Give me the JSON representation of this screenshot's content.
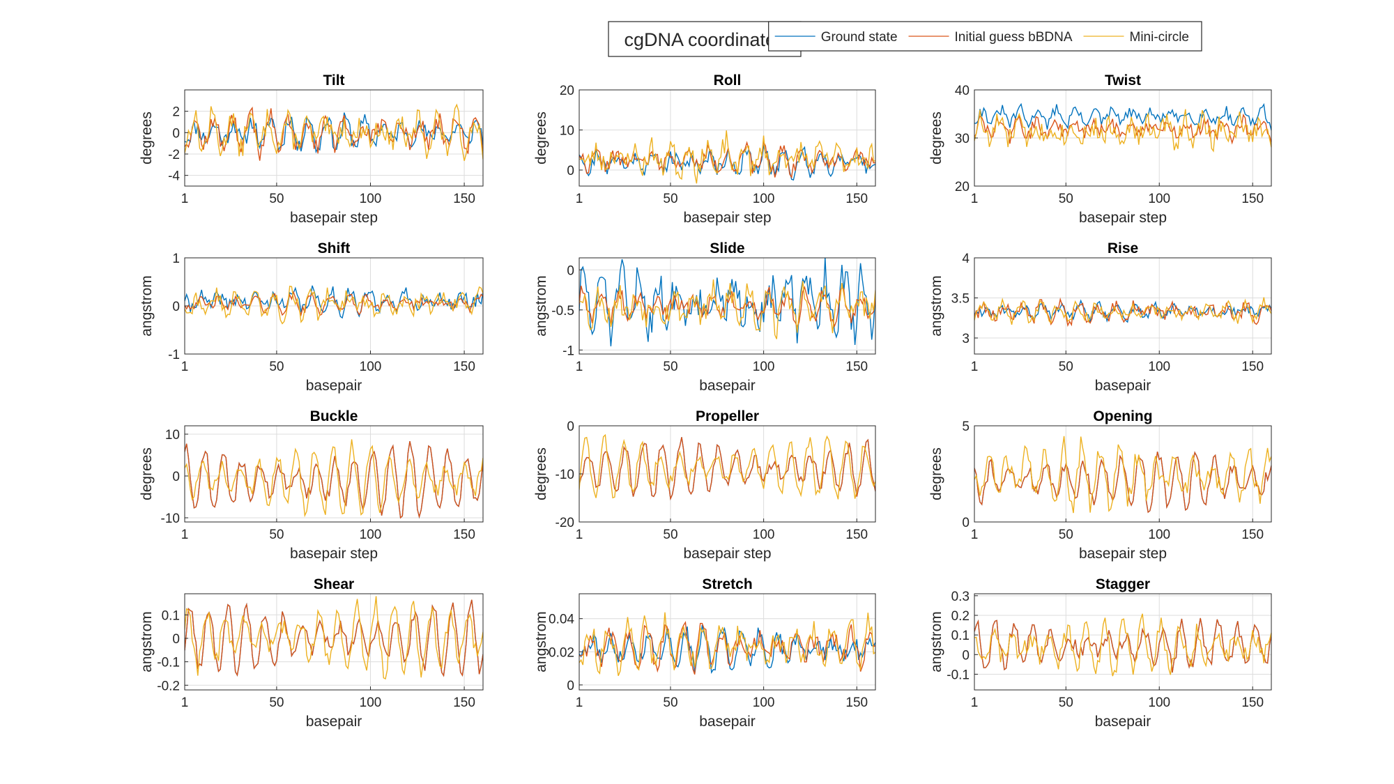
{
  "figure": {
    "title": "cgDNA coordinates",
    "legend": {
      "placement": "top-right",
      "entries": [
        {
          "label": "Ground state",
          "color": "#0072BD"
        },
        {
          "label": "Initial guess bBDNA",
          "color": "#D95319"
        },
        {
          "label": "Mini-circle",
          "color": "#EDB120"
        }
      ]
    }
  },
  "chart_data": [
    {
      "type": "line",
      "title": "Tilt",
      "xlabel": "basepair step",
      "ylabel": "degrees",
      "xlim": [
        1,
        160
      ],
      "ylim": [
        -5,
        4
      ],
      "xticks": [
        1,
        50,
        100,
        150
      ],
      "yticks": [
        -4,
        -2,
        0,
        2
      ],
      "grid": true,
      "series": [
        {
          "name": "Ground state",
          "base": 0,
          "amp": 1.3,
          "noise": 0.8,
          "seed": 11
        },
        {
          "name": "Initial guess bBDNA",
          "base": 0,
          "amp": 1.5,
          "noise": 0.9,
          "seed": 12
        },
        {
          "name": "Mini-circle",
          "base": 0,
          "amp": 1.4,
          "noise": 1.1,
          "seed": 13
        }
      ]
    },
    {
      "type": "line",
      "title": "Roll",
      "xlabel": "basepair step",
      "ylabel": "degrees",
      "xlim": [
        1,
        160
      ],
      "ylim": [
        -4,
        20
      ],
      "xticks": [
        1,
        50,
        100,
        150
      ],
      "yticks": [
        0,
        10,
        20
      ],
      "grid": true,
      "series": [
        {
          "name": "Ground state",
          "base": 2,
          "amp": 2.5,
          "noise": 2,
          "seed": 21
        },
        {
          "name": "Initial guess bBDNA",
          "base": 2.5,
          "amp": 2.5,
          "noise": 1.8,
          "seed": 22
        },
        {
          "name": "Mini-circle",
          "base": 3,
          "amp": 3.5,
          "noise": 3,
          "seed": 23
        }
      ]
    },
    {
      "type": "line",
      "title": "Twist",
      "xlabel": "basepair step",
      "ylabel": "degrees",
      "xlim": [
        1,
        160
      ],
      "ylim": [
        20,
        40
      ],
      "xticks": [
        1,
        50,
        100,
        150
      ],
      "yticks": [
        20,
        30,
        40
      ],
      "grid": true,
      "series": [
        {
          "name": "Ground state",
          "base": 34.5,
          "amp": 1.5,
          "noise": 1.2,
          "seed": 31
        },
        {
          "name": "Initial guess bBDNA",
          "base": 32,
          "amp": 1.5,
          "noise": 1.5,
          "seed": 32
        },
        {
          "name": "Mini-circle",
          "base": 31.5,
          "amp": 2,
          "noise": 2.5,
          "seed": 33
        }
      ]
    },
    {
      "type": "line",
      "title": "Shift",
      "xlabel": "basepair",
      "ylabel": "angstrom",
      "xlim": [
        1,
        160
      ],
      "ylim": [
        -1,
        1
      ],
      "xticks": [
        1,
        50,
        100,
        150
      ],
      "yticks": [
        -1,
        0,
        1
      ],
      "grid": true,
      "series": [
        {
          "name": "Ground state",
          "base": 0.1,
          "amp": 0.2,
          "noise": 0.15,
          "seed": 41
        },
        {
          "name": "Initial guess bBDNA",
          "base": 0.05,
          "amp": 0.15,
          "noise": 0.1,
          "seed": 42
        },
        {
          "name": "Mini-circle",
          "base": 0.05,
          "amp": 0.22,
          "noise": 0.18,
          "seed": 43
        }
      ]
    },
    {
      "type": "line",
      "title": "Slide",
      "xlabel": "basepair",
      "ylabel": "angstrom",
      "xlim": [
        1,
        160
      ],
      "ylim": [
        -1.05,
        0.15
      ],
      "xticks": [
        1,
        50,
        100,
        150
      ],
      "yticks": [
        -1,
        -0.5,
        0
      ],
      "grid": true,
      "series": [
        {
          "name": "Ground state",
          "base": -0.4,
          "amp": 0.3,
          "noise": 0.25,
          "seed": 51
        },
        {
          "name": "Initial guess bBDNA",
          "base": -0.45,
          "amp": 0.15,
          "noise": 0.1,
          "seed": 52
        },
        {
          "name": "Mini-circle",
          "base": -0.45,
          "amp": 0.22,
          "noise": 0.18,
          "seed": 53
        }
      ]
    },
    {
      "type": "line",
      "title": "Rise",
      "xlabel": "basepair",
      "ylabel": "angstrom",
      "xlim": [
        1,
        160
      ],
      "ylim": [
        2.8,
        4
      ],
      "xticks": [
        1,
        50,
        100,
        150
      ],
      "yticks": [
        3,
        3.5,
        4
      ],
      "grid": true,
      "series": [
        {
          "name": "Ground state",
          "base": 3.33,
          "amp": 0.08,
          "noise": 0.06,
          "seed": 61
        },
        {
          "name": "Initial guess bBDNA",
          "base": 3.33,
          "amp": 0.1,
          "noise": 0.08,
          "seed": 62
        },
        {
          "name": "Mini-circle",
          "base": 3.33,
          "amp": 0.09,
          "noise": 0.07,
          "seed": 63
        }
      ]
    },
    {
      "type": "line",
      "title": "Buckle",
      "xlabel": "basepair step",
      "ylabel": "degrees",
      "xlim": [
        1,
        160
      ],
      "ylim": [
        -11,
        12
      ],
      "xticks": [
        1,
        50,
        100,
        150
      ],
      "yticks": [
        -10,
        0,
        10
      ],
      "grid": true,
      "series": [
        {
          "name": "Ground state",
          "base": -1,
          "amp": 7,
          "noise": 1.5,
          "seed": 71
        },
        {
          "name": "Initial guess bBDNA",
          "base": -1,
          "amp": 7,
          "noise": 1.5,
          "seed": 71
        },
        {
          "name": "Mini-circle",
          "base": -0.8,
          "amp": 7,
          "noise": 1.8,
          "seed": 73
        }
      ]
    },
    {
      "type": "line",
      "title": "Propeller",
      "xlabel": "basepair step",
      "ylabel": "degrees",
      "xlim": [
        1,
        160
      ],
      "ylim": [
        -20,
        0
      ],
      "xticks": [
        1,
        50,
        100,
        150
      ],
      "yticks": [
        -20,
        -10,
        0
      ],
      "grid": true,
      "series": [
        {
          "name": "Ground state",
          "base": -9,
          "amp": 5,
          "noise": 1.2,
          "seed": 81
        },
        {
          "name": "Initial guess bBDNA",
          "base": -9,
          "amp": 5,
          "noise": 1.2,
          "seed": 81
        },
        {
          "name": "Mini-circle",
          "base": -8.8,
          "amp": 5,
          "noise": 1.4,
          "seed": 83
        }
      ]
    },
    {
      "type": "line",
      "title": "Opening",
      "xlabel": "basepair step",
      "ylabel": "degrees",
      "xlim": [
        1,
        160
      ],
      "ylim": [
        0,
        5
      ],
      "xticks": [
        1,
        50,
        100,
        150
      ],
      "yticks": [
        0,
        5
      ],
      "grid": true,
      "series": [
        {
          "name": "Ground state",
          "base": 2.2,
          "amp": 1.2,
          "noise": 0.4,
          "seed": 91
        },
        {
          "name": "Initial guess bBDNA",
          "base": 2.2,
          "amp": 1.2,
          "noise": 0.4,
          "seed": 91
        },
        {
          "name": "Mini-circle",
          "base": 2.4,
          "amp": 1.3,
          "noise": 0.6,
          "seed": 93
        }
      ]
    },
    {
      "type": "line",
      "title": "Shear",
      "xlabel": "basepair",
      "ylabel": "angstrom",
      "xlim": [
        1,
        160
      ],
      "ylim": [
        -0.22,
        0.19
      ],
      "xticks": [
        1,
        50,
        100,
        150
      ],
      "yticks": [
        -0.2,
        -0.1,
        0,
        0.1
      ],
      "grid": true,
      "series": [
        {
          "name": "Ground state",
          "base": 0,
          "amp": 0.12,
          "noise": 0.03,
          "seed": 101
        },
        {
          "name": "Initial guess bBDNA",
          "base": 0,
          "amp": 0.12,
          "noise": 0.03,
          "seed": 101
        },
        {
          "name": "Mini-circle",
          "base": 0,
          "amp": 0.13,
          "noise": 0.04,
          "seed": 103
        }
      ]
    },
    {
      "type": "line",
      "title": "Stretch",
      "xlabel": "basepair",
      "ylabel": "angstrom",
      "xlim": [
        1,
        160
      ],
      "ylim": [
        -0.003,
        0.055
      ],
      "xticks": [
        1,
        50,
        100,
        150
      ],
      "yticks": [
        0,
        0.02,
        0.04
      ],
      "grid": true,
      "series": [
        {
          "name": "Ground state",
          "base": 0.022,
          "amp": 0.01,
          "noise": 0.005,
          "seed": 111
        },
        {
          "name": "Initial guess bBDNA",
          "base": 0.023,
          "amp": 0.011,
          "noise": 0.006,
          "seed": 112
        },
        {
          "name": "Mini-circle",
          "base": 0.024,
          "amp": 0.012,
          "noise": 0.007,
          "seed": 113
        }
      ]
    },
    {
      "type": "line",
      "title": "Stagger",
      "xlabel": "basepair",
      "ylabel": "angstrom",
      "xlim": [
        1,
        160
      ],
      "ylim": [
        -0.18,
        0.31
      ],
      "xticks": [
        1,
        50,
        100,
        150
      ],
      "yticks": [
        -0.1,
        0,
        0.1,
        0.2,
        0.3
      ],
      "grid": true,
      "series": [
        {
          "name": "Ground state",
          "base": 0.05,
          "amp": 0.1,
          "noise": 0.04,
          "seed": 121
        },
        {
          "name": "Initial guess bBDNA",
          "base": 0.05,
          "amp": 0.1,
          "noise": 0.04,
          "seed": 121
        },
        {
          "name": "Mini-circle",
          "base": 0.04,
          "amp": 0.11,
          "noise": 0.05,
          "seed": 123
        }
      ]
    }
  ]
}
